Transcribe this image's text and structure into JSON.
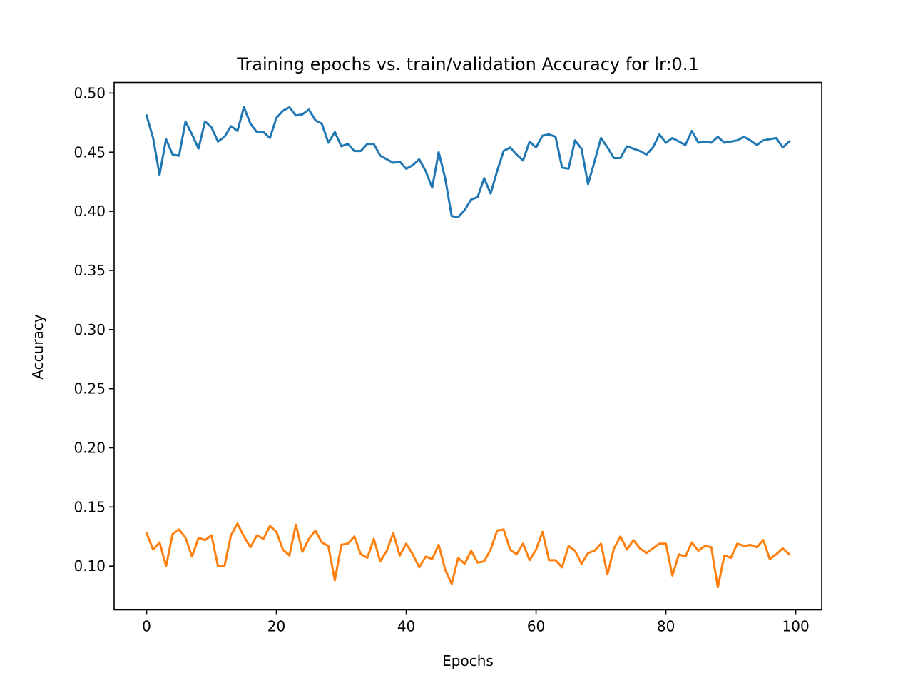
{
  "chart_data": {
    "type": "line",
    "title": "Training epochs vs. train/validation Accuracy for lr:0.1",
    "xlabel": "Epochs",
    "ylabel": "Accuracy",
    "xlim": [
      -5,
      104
    ],
    "ylim": [
      0.063,
      0.509
    ],
    "xticks": [
      0,
      20,
      40,
      60,
      80,
      100
    ],
    "xtick_labels": [
      "0",
      "20",
      "40",
      "60",
      "80",
      "100"
    ],
    "yticks": [
      0.1,
      0.15,
      0.2,
      0.25,
      0.3,
      0.35,
      0.4,
      0.45,
      0.5
    ],
    "ytick_labels": [
      "0.10",
      "0.15",
      "0.20",
      "0.25",
      "0.30",
      "0.35",
      "0.40",
      "0.45",
      "0.50"
    ],
    "grid": false,
    "legend": "none",
    "series": [
      {
        "color": "#1f77b4",
        "values": [
          0.481,
          0.462,
          0.431,
          0.461,
          0.448,
          0.447,
          0.476,
          0.465,
          0.453,
          0.476,
          0.471,
          0.459,
          0.463,
          0.472,
          0.468,
          0.488,
          0.474,
          0.467,
          0.467,
          0.462,
          0.479,
          0.485,
          0.488,
          0.481,
          0.482,
          0.486,
          0.477,
          0.474,
          0.458,
          0.467,
          0.455,
          0.457,
          0.451,
          0.451,
          0.457,
          0.457,
          0.447,
          0.444,
          0.441,
          0.442,
          0.436,
          0.439,
          0.444,
          0.434,
          0.42,
          0.45,
          0.428,
          0.396,
          0.395,
          0.401,
          0.41,
          0.412,
          0.428,
          0.415,
          0.434,
          0.451,
          0.454,
          0.448,
          0.443,
          0.459,
          0.454,
          0.464,
          0.465,
          0.463,
          0.437,
          0.436,
          0.46,
          0.453,
          0.423,
          0.442,
          0.462,
          0.454,
          0.445,
          0.445,
          0.455,
          0.453,
          0.451,
          0.448,
          0.454,
          0.465,
          0.458,
          0.462,
          0.459,
          0.456,
          0.468,
          0.458,
          0.459,
          0.458,
          0.463,
          0.458,
          0.459,
          0.46,
          0.463,
          0.46,
          0.456,
          0.46,
          0.461,
          0.462,
          0.454,
          0.459
        ]
      },
      {
        "color": "#ff7f0e",
        "values": [
          0.128,
          0.114,
          0.12,
          0.1,
          0.127,
          0.131,
          0.124,
          0.108,
          0.124,
          0.122,
          0.126,
          0.1,
          0.1,
          0.126,
          0.136,
          0.125,
          0.116,
          0.126,
          0.123,
          0.134,
          0.129,
          0.114,
          0.109,
          0.135,
          0.112,
          0.123,
          0.13,
          0.12,
          0.117,
          0.088,
          0.118,
          0.119,
          0.125,
          0.11,
          0.107,
          0.123,
          0.104,
          0.113,
          0.128,
          0.109,
          0.119,
          0.11,
          0.099,
          0.108,
          0.106,
          0.118,
          0.097,
          0.085,
          0.107,
          0.102,
          0.113,
          0.103,
          0.104,
          0.114,
          0.13,
          0.131,
          0.114,
          0.11,
          0.119,
          0.105,
          0.114,
          0.129,
          0.105,
          0.105,
          0.099,
          0.117,
          0.113,
          0.102,
          0.111,
          0.113,
          0.119,
          0.093,
          0.115,
          0.125,
          0.114,
          0.122,
          0.115,
          0.111,
          0.115,
          0.119,
          0.119,
          0.092,
          0.11,
          0.108,
          0.12,
          0.113,
          0.117,
          0.116,
          0.082,
          0.109,
          0.107,
          0.119,
          0.117,
          0.118,
          0.116,
          0.122,
          0.106,
          0.11,
          0.115,
          0.11
        ]
      }
    ]
  }
}
